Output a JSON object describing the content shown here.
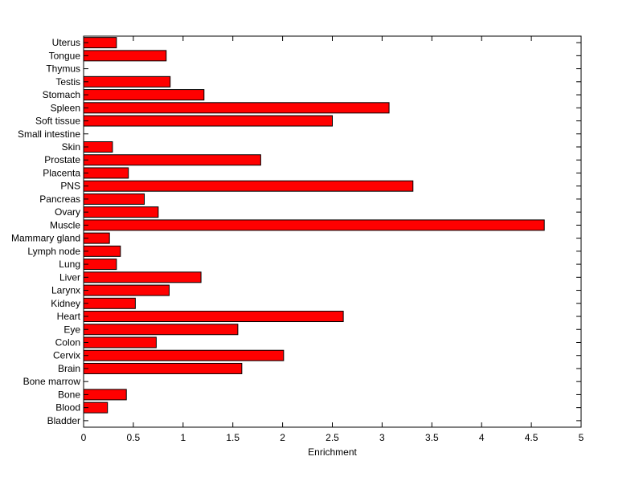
{
  "colors": {
    "bar_fill": "#ff0000",
    "bar_stroke": "#000000",
    "background": "#ffffff",
    "axis": "#000000"
  },
  "chart_data": {
    "type": "bar",
    "orientation": "horizontal",
    "xlabel": "Enrichment",
    "ylabel": "",
    "title": "",
    "xlim": [
      0,
      5
    ],
    "xticks": [
      0,
      0.5,
      1,
      1.5,
      2,
      2.5,
      3,
      3.5,
      4,
      4.5,
      5
    ],
    "xtick_labels": [
      "0",
      "0.5",
      "1",
      "1.5",
      "2",
      "2.5",
      "3",
      "3.5",
      "4",
      "4.5",
      "5"
    ],
    "grid": false,
    "legend": "none",
    "categories": [
      "Bladder",
      "Blood",
      "Bone",
      "Bone marrow",
      "Brain",
      "Cervix",
      "Colon",
      "Eye",
      "Heart",
      "Kidney",
      "Larynx",
      "Liver",
      "Lung",
      "Lymph node",
      "Mammary gland",
      "Muscle",
      "Ovary",
      "Pancreas",
      "PNS",
      "Placenta",
      "Prostate",
      "Skin",
      "Small intestine",
      "Soft tissue",
      "Spleen",
      "Stomach",
      "Testis",
      "Thymus",
      "Tongue",
      "Uterus"
    ],
    "values": [
      0,
      0.24,
      0.43,
      0,
      1.59,
      2.01,
      0.73,
      1.55,
      2.61,
      0.52,
      0.86,
      1.18,
      0.33,
      0.37,
      0.26,
      4.63,
      0.75,
      0.61,
      3.31,
      0.45,
      1.78,
      0.29,
      0,
      2.5,
      3.07,
      1.21,
      0.87,
      0,
      0.83,
      0.33
    ]
  }
}
